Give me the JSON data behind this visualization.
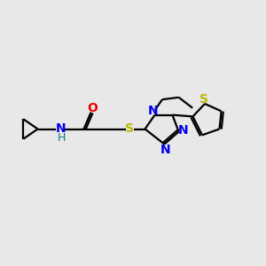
{
  "bg_color": "#e8e8e8",
  "bond_color": "#000000",
  "N_color": "#0000ee",
  "O_color": "#ee0000",
  "S_color": "#bbbb00",
  "NH_color": "#008080",
  "line_width": 1.6,
  "font_size": 10,
  "xlim": [
    0,
    10
  ],
  "ylim": [
    0,
    10
  ]
}
